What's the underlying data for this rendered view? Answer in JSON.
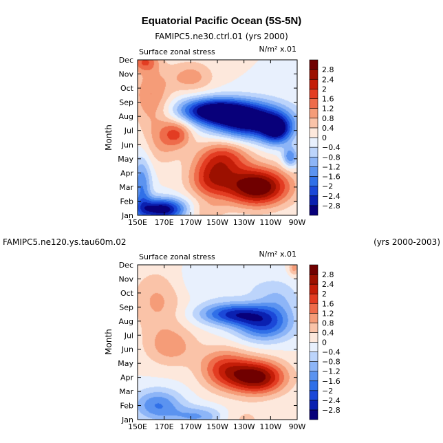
{
  "figure": {
    "title": "Equatorial Pacific Ocean (5S-5N)",
    "panel1_subtitle": "FAMIPC5.ne30.ctrl.01  (yrs 2000)",
    "panel2_left_subtitle": "FAMIPC5.ne120.ys.tau60m.02",
    "panel2_right_subtitle": "(yrs 2000-2003)",
    "variable_label": "Surface zonal stress",
    "units_label": "N/m² x.01"
  },
  "chart_data": [
    {
      "type": "heatmap",
      "title": "FAMIPC5.ne30.ctrl.01 (yrs 2000)",
      "variable": "Surface zonal stress",
      "units": "N/m² x.01",
      "xlabel": "",
      "ylabel": "Month",
      "x_ticks": [
        "150E",
        "170E",
        "170W",
        "150W",
        "130W",
        "110W",
        "90W"
      ],
      "x_range_deg_east": [
        150,
        270
      ],
      "y_ticks": [
        "Jan",
        "Feb",
        "Mar",
        "Apr",
        "May",
        "Jun",
        "Jul",
        "Aug",
        "Sep",
        "Oct",
        "Nov",
        "Dec"
      ],
      "features": [
        {
          "lon": 155,
          "month": 11.9,
          "amp": 1.4,
          "slon": 7,
          "smon": 0.5
        },
        {
          "lon": 206,
          "month": 8.4,
          "amp": -3.1,
          "slon": 18,
          "smon": 0.65
        },
        {
          "lon": 235,
          "month": 7.7,
          "amp": -3.4,
          "slon": 20,
          "smon": 0.9
        },
        {
          "lon": 255,
          "month": 7.0,
          "amp": -2.3,
          "slon": 8,
          "smon": 0.7
        },
        {
          "lon": 180,
          "month": 6.8,
          "amp": 1.4,
          "slon": 8,
          "smon": 0.7
        },
        {
          "lon": 168,
          "month": 6.2,
          "amp": 0.8,
          "slon": 10,
          "smon": 1.2
        },
        {
          "lon": 215,
          "month": 5.1,
          "amp": 1.7,
          "slon": 14,
          "smon": 0.9
        },
        {
          "lon": 240,
          "month": 3.0,
          "amp": 3.4,
          "slon": 17,
          "smon": 0.95
        },
        {
          "lon": 205,
          "month": 3.5,
          "amp": 1.8,
          "slon": 12,
          "smon": 1.0
        },
        {
          "lon": 265,
          "month": 5.1,
          "amp": -1.6,
          "slon": 4,
          "smon": 0.5
        },
        {
          "lon": 168,
          "month": 1.4,
          "amp": -3.2,
          "slon": 13,
          "smon": 0.55
        },
        {
          "lon": 153,
          "month": 3.0,
          "amp": -1.6,
          "slon": 5,
          "smon": 1.5
        },
        {
          "lon": 200,
          "month": 1.2,
          "amp": 0.6,
          "slon": 10,
          "smon": 0.5
        },
        {
          "lon": 160,
          "month": 9.5,
          "amp": 1.2,
          "slon": 10,
          "smon": 1.5
        },
        {
          "lon": 190,
          "month": 10.8,
          "amp": 1.0,
          "slon": 12,
          "smon": 0.8
        }
      ],
      "colorbar_levels": [
        -2.8,
        -2.4,
        -2,
        -1.6,
        -1.2,
        -0.8,
        -0.4,
        0,
        0.4,
        0.8,
        1.2,
        1.6,
        2,
        2.4,
        2.8
      ]
    },
    {
      "type": "heatmap",
      "title": "FAMIPC5.ne120.ys.tau60m.02 (yrs 2000-2003)",
      "variable": "Surface zonal stress",
      "units": "N/m² x.01",
      "xlabel": "",
      "ylabel": "Month",
      "x_ticks": [
        "150E",
        "170E",
        "170W",
        "150W",
        "130W",
        "110W",
        "90W"
      ],
      "x_range_deg_east": [
        150,
        270
      ],
      "y_ticks": [
        "Jan",
        "Feb",
        "Mar",
        "Apr",
        "May",
        "Jun",
        "Jul",
        "Aug",
        "Sep",
        "Oct",
        "Nov",
        "Dec"
      ],
      "features": [
        {
          "lon": 222,
          "month": 8.5,
          "amp": -2.3,
          "slon": 18,
          "smon": 0.55
        },
        {
          "lon": 245,
          "month": 7.7,
          "amp": -2.0,
          "slon": 15,
          "smon": 0.8
        },
        {
          "lon": 255,
          "month": 9.5,
          "amp": -0.8,
          "slon": 12,
          "smon": 1.0
        },
        {
          "lon": 240,
          "month": 4.0,
          "amp": 3.0,
          "slon": 15,
          "smon": 0.85
        },
        {
          "lon": 215,
          "month": 4.6,
          "amp": 1.7,
          "slon": 13,
          "smon": 1.0
        },
        {
          "lon": 175,
          "month": 6.2,
          "amp": 1.0,
          "slon": 14,
          "smon": 1.0
        },
        {
          "lon": 165,
          "month": 2.0,
          "amp": -1.6,
          "slon": 13,
          "smon": 0.8
        },
        {
          "lon": 195,
          "month": 1.2,
          "amp": -1.2,
          "slon": 14,
          "smon": 0.5
        },
        {
          "lon": 230,
          "month": 1.0,
          "amp": 0.5,
          "slon": 12,
          "smon": 0.6
        },
        {
          "lon": 165,
          "month": 9.5,
          "amp": 0.9,
          "slon": 14,
          "smon": 1.6
        },
        {
          "lon": 268,
          "month": 11.8,
          "amp": 1.0,
          "slon": 3,
          "smon": 0.4
        },
        {
          "lon": 210,
          "month": 10.8,
          "amp": -0.4,
          "slon": 25,
          "smon": 1.0
        }
      ],
      "colorbar_levels": [
        -2.8,
        -2.4,
        -2,
        -1.6,
        -1.2,
        -0.8,
        -0.4,
        0,
        0.4,
        0.8,
        1.2,
        1.6,
        2,
        2.4,
        2.8
      ]
    }
  ],
  "colormap": [
    "#08007a",
    "#0a20b0",
    "#1b48d8",
    "#3070e8",
    "#5b93f0",
    "#8db5f7",
    "#bcd4fb",
    "#e8f0fd",
    "#fde8dc",
    "#fac3a8",
    "#f59c78",
    "#ee6b4a",
    "#e33c22",
    "#c41d08",
    "#9c1000",
    "#700000"
  ]
}
